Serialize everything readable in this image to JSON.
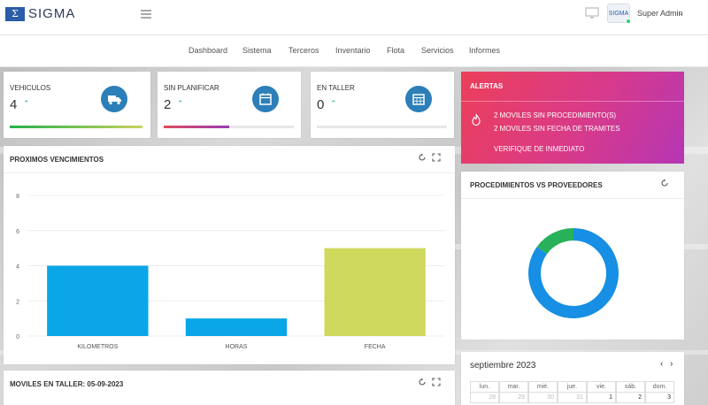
{
  "app": {
    "logo_symbol": "Σ",
    "title": "SIGMA"
  },
  "header": {
    "user_name": "Super Admin",
    "avatar_text": "SIGMA",
    "status_color": "#2ecc71"
  },
  "nav": {
    "items": [
      "Dashboard",
      "Sistema",
      "Terceros",
      "Inventario",
      "Flota",
      "Servicios",
      "Informes"
    ]
  },
  "stats": [
    {
      "label": "VEHICULOS",
      "value": "4",
      "icon": "truck-icon",
      "progress": 1.0,
      "color_from": "#22b04b",
      "color_to": "#c6d35a"
    },
    {
      "label": "SIN PLANIFICAR",
      "value": "2",
      "icon": "calendar-icon",
      "progress": 0.5,
      "color_from": "#e04a5c",
      "color_to": "#9a3bb5"
    },
    {
      "label": "EN TALLER",
      "value": "0",
      "icon": "calendar-grid-icon",
      "progress": 0,
      "color_from": "#2c7fb8",
      "color_to": "#2c7fb8"
    }
  ],
  "alerts": {
    "title": "ALERTAS",
    "icon": "fire-icon",
    "lines": [
      "2  MOVILES SIN PROCEDIMIENTO(S)",
      "2  MOVILES SIN FECHA DE TRAMITES",
      "VERIFIQUE DE INMEDIATO"
    ]
  },
  "vencimientos": {
    "title": "PROXIMOS VENCIMIENTOS",
    "tools": [
      "refresh-icon",
      "expand-icon"
    ]
  },
  "chart_data": [
    {
      "type": "bar",
      "categories": [
        "KILOMETROS",
        "HORAS",
        "FECHA"
      ],
      "values": [
        4,
        1,
        5
      ],
      "colors": [
        "#0aa6e8",
        "#0aa6e8",
        "#cfd95e"
      ],
      "ylim": [
        0,
        8
      ],
      "yticks": [
        "0",
        "2",
        "4",
        "6",
        "8"
      ],
      "grid": true
    },
    {
      "type": "pie",
      "donut": true,
      "values": [
        85,
        15
      ],
      "colors": [
        "#168fe4",
        "#27b15a"
      ]
    }
  ],
  "procedimientos": {
    "title": "PROCEDIMIENTOS VS PROVEEDORES"
  },
  "taller": {
    "title": "MOVILES EN TALLER: 05-09-2023"
  },
  "calendar": {
    "title": "septiembre 2023",
    "prev": "‹",
    "next": "›",
    "weekdays": [
      "lun.",
      "mar.",
      "mié.",
      "jue.",
      "vie.",
      "sáb.",
      "dom."
    ],
    "first_row": [
      "28",
      "29",
      "30",
      "31",
      "1",
      "2",
      "3"
    ]
  }
}
